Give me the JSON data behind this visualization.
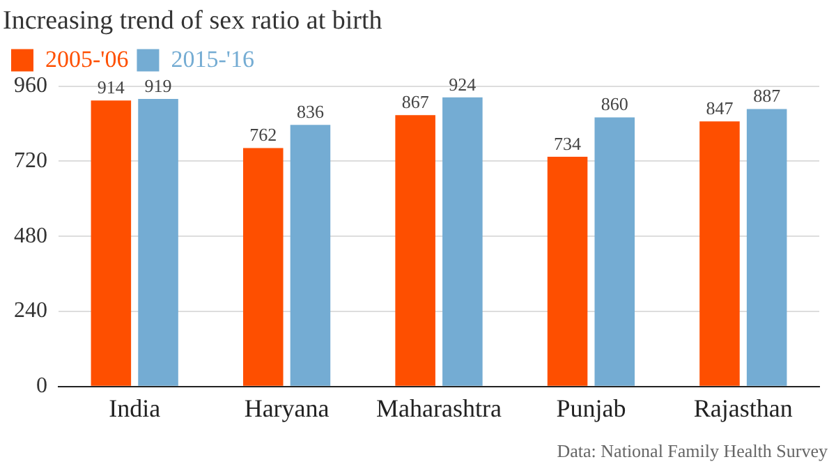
{
  "chart_data": {
    "type": "bar",
    "title": "Increasing trend of sex ratio at birth",
    "categories": [
      "India",
      "Haryana",
      "Maharashtra",
      "Punjab",
      "Rajasthan"
    ],
    "series": [
      {
        "name": "2005-'06",
        "color": "#fe4f00",
        "values": [
          914,
          762,
          867,
          734,
          847
        ]
      },
      {
        "name": "2015-'16",
        "color": "#74acd3",
        "values": [
          919,
          836,
          924,
          860,
          887
        ]
      }
    ],
    "ylim": [
      0,
      960
    ],
    "yticks": [
      0,
      240,
      480,
      720,
      960
    ],
    "grid": "y",
    "legend": "top left",
    "data_labels": true,
    "annotations": [
      "Data: National Family Health Survey"
    ]
  }
}
